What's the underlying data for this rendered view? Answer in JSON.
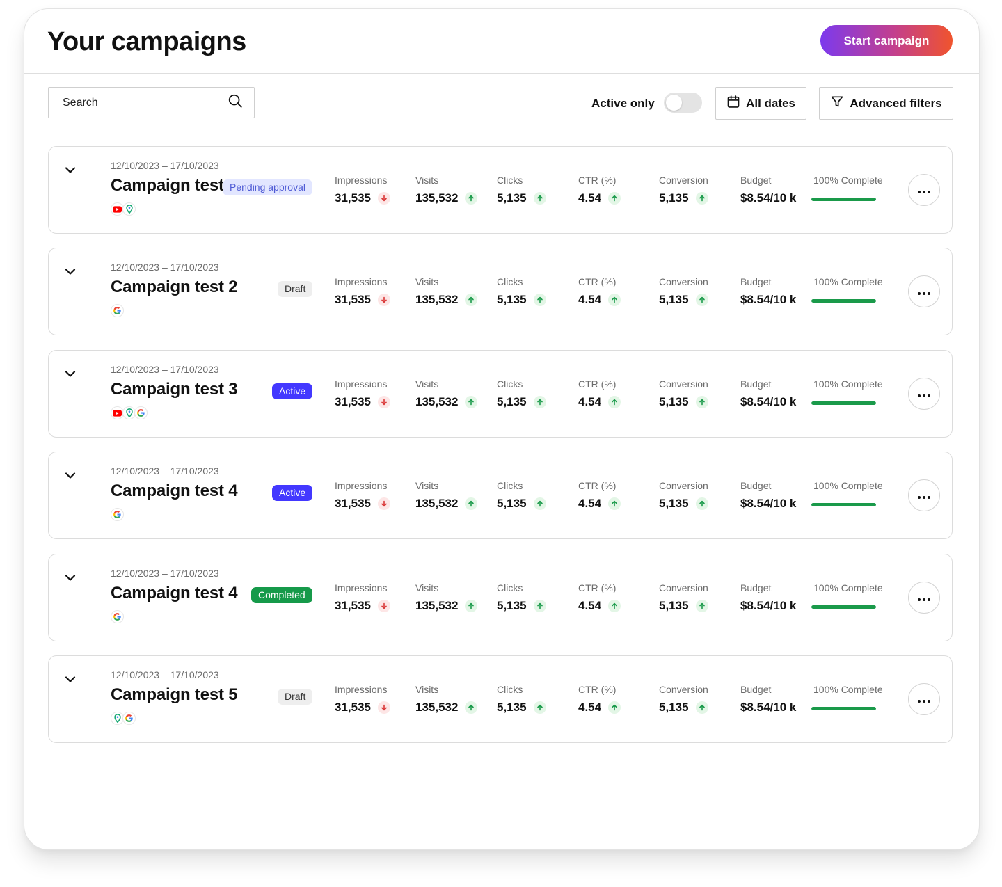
{
  "header": {
    "title": "Your campaigns",
    "start_label": "Start campaign"
  },
  "toolbar": {
    "search_placeholder": "Search",
    "active_only_label": "Active only",
    "active_only_on": false,
    "dates_label": "All dates",
    "filters_label": "Advanced filters"
  },
  "colors": {
    "accent_gradient": [
      "#7c3aed",
      "#f0542d"
    ],
    "progress": "#1a9a4a",
    "trend_up": "#1a9a4a",
    "trend_down": "#d93636"
  },
  "campaigns": [
    {
      "date": "12/10/2023 – 17/10/2023",
      "name": "Campaign test 1",
      "status": "Pending approval",
      "status_type": "pending",
      "sources": [
        "youtube-icon",
        "maps-pin-icon"
      ],
      "metrics": [
        {
          "label": "Impressions",
          "value": "31,535",
          "trend": "down"
        },
        {
          "label": "Visits",
          "value": "135,532",
          "trend": "up"
        },
        {
          "label": "Clicks",
          "value": "5,135",
          "trend": "up"
        },
        {
          "label": "CTR (%)",
          "value": "4.54",
          "trend": "up"
        },
        {
          "label": "Conversion",
          "value": "5,135",
          "trend": "up"
        },
        {
          "label": "Budget",
          "value": "$8.54/10 k"
        }
      ],
      "progress_label": "100% Complete",
      "progress": 1.0
    },
    {
      "date": "12/10/2023 – 17/10/2023",
      "name": "Campaign test 2",
      "status": "Draft",
      "status_type": "draft",
      "sources": [
        "google-icon"
      ],
      "metrics": [
        {
          "label": "Impressions",
          "value": "31,535",
          "trend": "down"
        },
        {
          "label": "Visits",
          "value": "135,532",
          "trend": "up"
        },
        {
          "label": "Clicks",
          "value": "5,135",
          "trend": "up"
        },
        {
          "label": "CTR (%)",
          "value": "4.54",
          "trend": "up"
        },
        {
          "label": "Conversion",
          "value": "5,135",
          "trend": "up"
        },
        {
          "label": "Budget",
          "value": "$8.54/10 k"
        }
      ],
      "progress_label": "100% Complete",
      "progress": 1.0
    },
    {
      "date": "12/10/2023 – 17/10/2023",
      "name": "Campaign test 3",
      "status": "Active",
      "status_type": "active",
      "sources": [
        "youtube-icon",
        "maps-pin-icon",
        "google-icon"
      ],
      "metrics": [
        {
          "label": "Impressions",
          "value": "31,535",
          "trend": "down"
        },
        {
          "label": "Visits",
          "value": "135,532",
          "trend": "up"
        },
        {
          "label": "Clicks",
          "value": "5,135",
          "trend": "up"
        },
        {
          "label": "CTR (%)",
          "value": "4.54",
          "trend": "up"
        },
        {
          "label": "Conversion",
          "value": "5,135",
          "trend": "up"
        },
        {
          "label": "Budget",
          "value": "$8.54/10 k"
        }
      ],
      "progress_label": "100% Complete",
      "progress": 1.0
    },
    {
      "date": "12/10/2023 – 17/10/2023",
      "name": "Campaign test 4",
      "status": "Active",
      "status_type": "active",
      "sources": [
        "google-icon"
      ],
      "metrics": [
        {
          "label": "Impressions",
          "value": "31,535",
          "trend": "down"
        },
        {
          "label": "Visits",
          "value": "135,532",
          "trend": "up"
        },
        {
          "label": "Clicks",
          "value": "5,135",
          "trend": "up"
        },
        {
          "label": "CTR (%)",
          "value": "4.54",
          "trend": "up"
        },
        {
          "label": "Conversion",
          "value": "5,135",
          "trend": "up"
        },
        {
          "label": "Budget",
          "value": "$8.54/10 k"
        }
      ],
      "progress_label": "100% Complete",
      "progress": 1.0
    },
    {
      "date": "12/10/2023 – 17/10/2023",
      "name": "Campaign test 4",
      "status": "Completed",
      "status_type": "completed",
      "sources": [
        "google-icon"
      ],
      "metrics": [
        {
          "label": "Impressions",
          "value": "31,535",
          "trend": "down"
        },
        {
          "label": "Visits",
          "value": "135,532",
          "trend": "up"
        },
        {
          "label": "Clicks",
          "value": "5,135",
          "trend": "up"
        },
        {
          "label": "CTR (%)",
          "value": "4.54",
          "trend": "up"
        },
        {
          "label": "Conversion",
          "value": "5,135",
          "trend": "up"
        },
        {
          "label": "Budget",
          "value": "$8.54/10 k"
        }
      ],
      "progress_label": "100% Complete",
      "progress": 1.0
    },
    {
      "date": "12/10/2023 – 17/10/2023",
      "name": "Campaign test 5",
      "status": "Draft",
      "status_type": "draft",
      "sources": [
        "maps-pin-icon",
        "google-icon"
      ],
      "metrics": [
        {
          "label": "Impressions",
          "value": "31,535",
          "trend": "down"
        },
        {
          "label": "Visits",
          "value": "135,532",
          "trend": "up"
        },
        {
          "label": "Clicks",
          "value": "5,135",
          "trend": "up"
        },
        {
          "label": "CTR (%)",
          "value": "4.54",
          "trend": "up"
        },
        {
          "label": "Conversion",
          "value": "5,135",
          "trend": "up"
        },
        {
          "label": "Budget",
          "value": "$8.54/10 k"
        }
      ],
      "progress_label": "100% Complete",
      "progress": 1.0
    }
  ]
}
